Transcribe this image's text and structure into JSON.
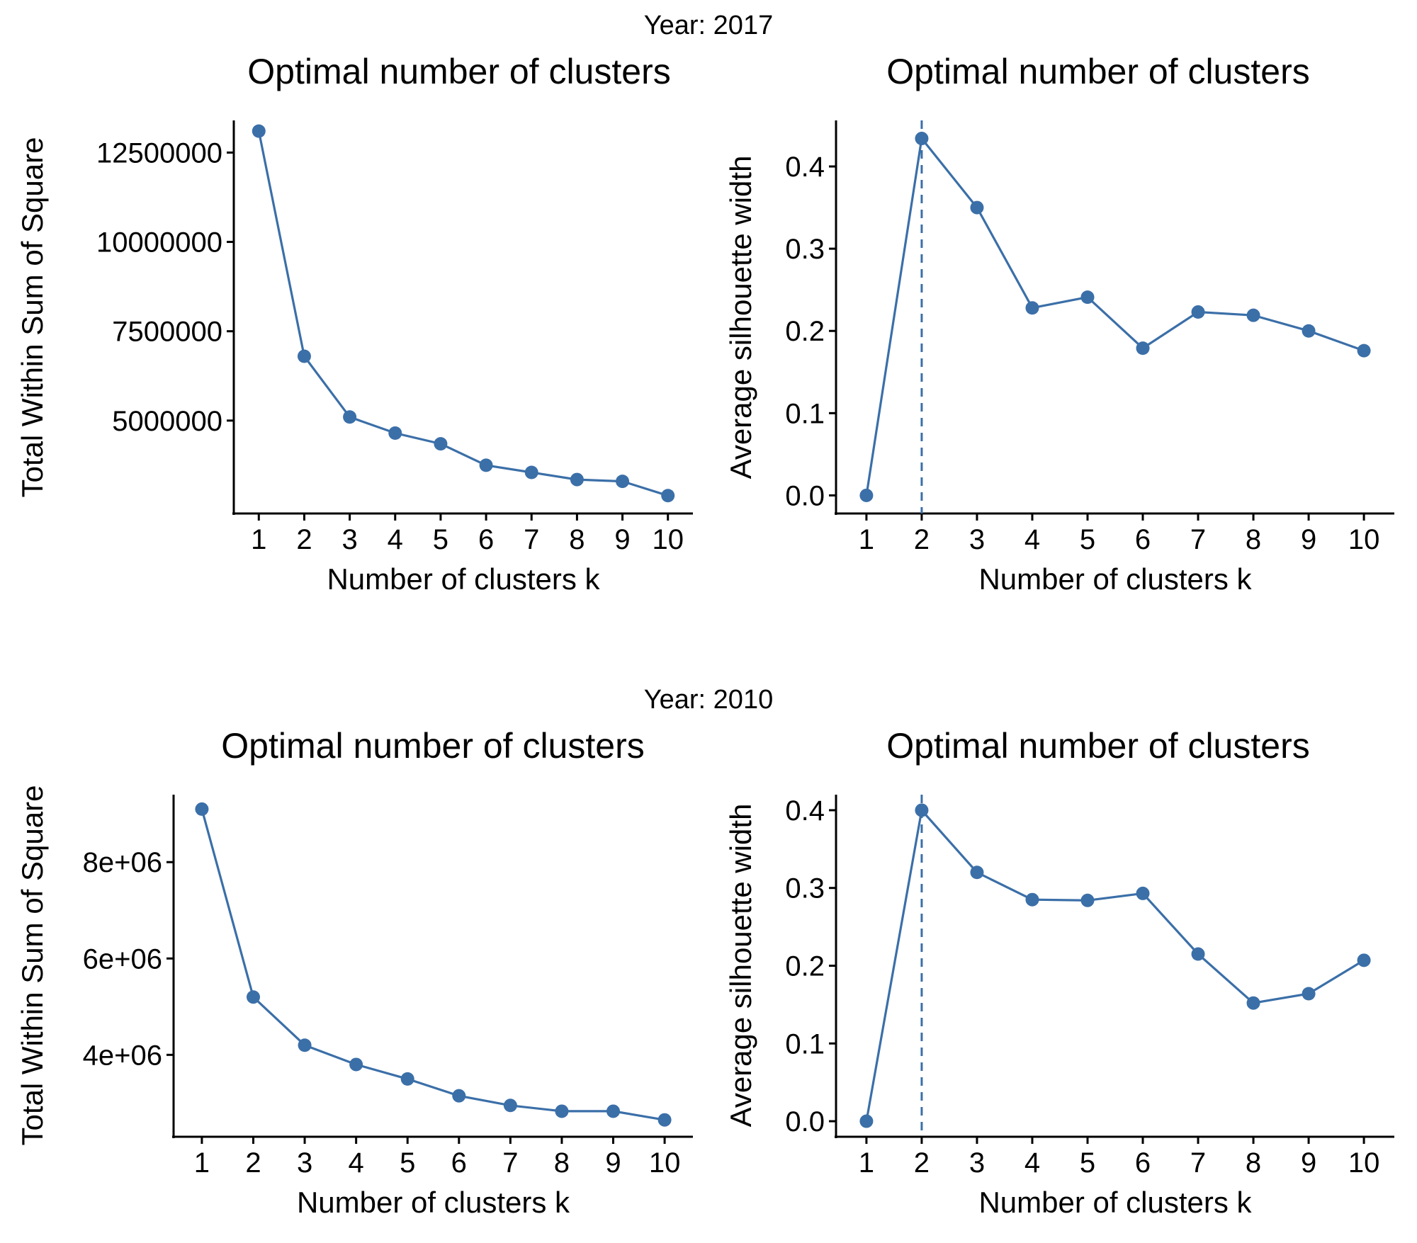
{
  "figure_titles": [
    "Year: 2017",
    "Year: 2010"
  ],
  "colors": {
    "series": "#3b6fa8",
    "axis": "#000000",
    "background": "#ffffff"
  },
  "chart_data": [
    {
      "type": "line",
      "group": "Year: 2017",
      "title": "Optimal number of clusters",
      "xlabel": "Number of clusters k",
      "ylabel": "Total Within Sum of Square",
      "x": [
        1,
        2,
        3,
        4,
        5,
        6,
        7,
        8,
        9,
        10
      ],
      "y": [
        13100000,
        6800000,
        5100000,
        4650000,
        4350000,
        3750000,
        3550000,
        3350000,
        3300000,
        2900000
      ],
      "ylim": [
        2400000,
        13400000
      ],
      "yticks": [
        5000000,
        7500000,
        10000000,
        12500000
      ],
      "ytick_labels": [
        "5000000",
        "7500000",
        "10000000",
        "12500000"
      ],
      "vline_x": null,
      "grid": false,
      "legend": "none"
    },
    {
      "type": "line",
      "group": "Year: 2017",
      "title": "Optimal number of clusters",
      "xlabel": "Number of clusters k",
      "ylabel": "Average silhouette width",
      "x": [
        1,
        2,
        3,
        4,
        5,
        6,
        7,
        8,
        9,
        10
      ],
      "y": [
        0.0,
        0.434,
        0.35,
        0.228,
        0.241,
        0.179,
        0.223,
        0.219,
        0.2,
        0.176
      ],
      "ylim": [
        -0.022,
        0.456
      ],
      "yticks": [
        0.0,
        0.1,
        0.2,
        0.3,
        0.4
      ],
      "ytick_labels": [
        "0.0",
        "0.1",
        "0.2",
        "0.3",
        "0.4"
      ],
      "vline_x": 2,
      "grid": false,
      "legend": "none"
    },
    {
      "type": "line",
      "group": "Year: 2010",
      "title": "Optimal number of clusters",
      "xlabel": "Number of clusters k",
      "ylabel": "Total Within Sum of Square",
      "x": [
        1,
        2,
        3,
        4,
        5,
        6,
        7,
        8,
        9,
        10
      ],
      "y": [
        9100000,
        5200000,
        4200000,
        3800000,
        3500000,
        3150000,
        2950000,
        2830000,
        2830000,
        2650000
      ],
      "ylim": [
        2300000,
        9400000
      ],
      "yticks": [
        4000000,
        6000000,
        8000000
      ],
      "ytick_labels": [
        "4e+06",
        "6e+06",
        "8e+06"
      ],
      "vline_x": null,
      "grid": false,
      "legend": "none"
    },
    {
      "type": "line",
      "group": "Year: 2010",
      "title": "Optimal number of clusters",
      "xlabel": "Number of clusters k",
      "ylabel": "Average silhouette width",
      "x": [
        1,
        2,
        3,
        4,
        5,
        6,
        7,
        8,
        9,
        10
      ],
      "y": [
        0.0,
        0.4,
        0.32,
        0.285,
        0.284,
        0.293,
        0.215,
        0.152,
        0.164,
        0.207
      ],
      "ylim": [
        -0.02,
        0.42
      ],
      "yticks": [
        0.0,
        0.1,
        0.2,
        0.3,
        0.4
      ],
      "ytick_labels": [
        "0.0",
        "0.1",
        "0.2",
        "0.3",
        "0.4"
      ],
      "vline_x": 2,
      "grid": false,
      "legend": "none"
    }
  ]
}
